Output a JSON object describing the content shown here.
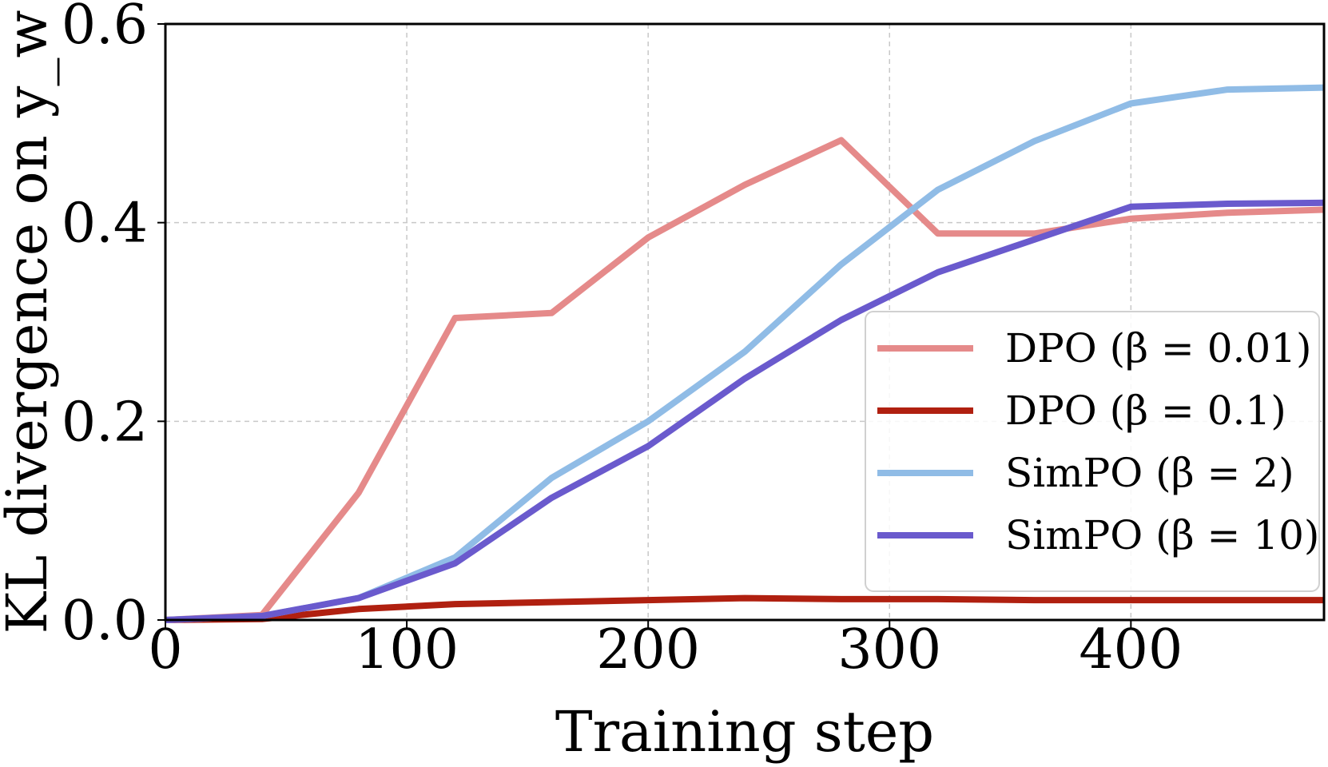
{
  "chart_data": {
    "type": "line",
    "xlabel": "Training step",
    "ylabel": "KL divergence on y_w",
    "xlim": [
      0,
      480
    ],
    "ylim": [
      0,
      0.6
    ],
    "xticks": [
      0,
      100,
      200,
      300,
      400
    ],
    "yticks": [
      0.0,
      0.2,
      0.4,
      0.6
    ],
    "xtick_labels": [
      "0",
      "100",
      "200",
      "300",
      "400"
    ],
    "ytick_labels": [
      "0.0",
      "0.2",
      "0.4",
      "0.6"
    ],
    "grid": true,
    "legend_position": "center-right",
    "x": [
      0,
      40,
      80,
      120,
      160,
      200,
      240,
      280,
      320,
      360,
      400,
      440,
      480
    ],
    "series": [
      {
        "name": "DPO (β = 0.01)",
        "color": "#e58a8a",
        "values": [
          0.0,
          0.005,
          0.128,
          0.304,
          0.309,
          0.385,
          0.438,
          0.483,
          0.389,
          0.389,
          0.404,
          0.41,
          0.413
        ]
      },
      {
        "name": "DPO (β = 0.1)",
        "color": "#b02010",
        "values": [
          0.0,
          0.001,
          0.011,
          0.016,
          0.018,
          0.02,
          0.022,
          0.021,
          0.021,
          0.02,
          0.02,
          0.02,
          0.02
        ]
      },
      {
        "name": "SimPO (β = 2)",
        "color": "#90bce6",
        "values": [
          0.0,
          0.004,
          0.022,
          0.063,
          0.143,
          0.2,
          0.27,
          0.358,
          0.433,
          0.482,
          0.52,
          0.534,
          0.536
        ]
      },
      {
        "name": "SimPO (β = 10)",
        "color": "#6a5acd",
        "values": [
          0.0,
          0.004,
          0.022,
          0.057,
          0.123,
          0.175,
          0.243,
          0.302,
          0.35,
          0.383,
          0.416,
          0.419,
          0.42
        ]
      }
    ]
  }
}
